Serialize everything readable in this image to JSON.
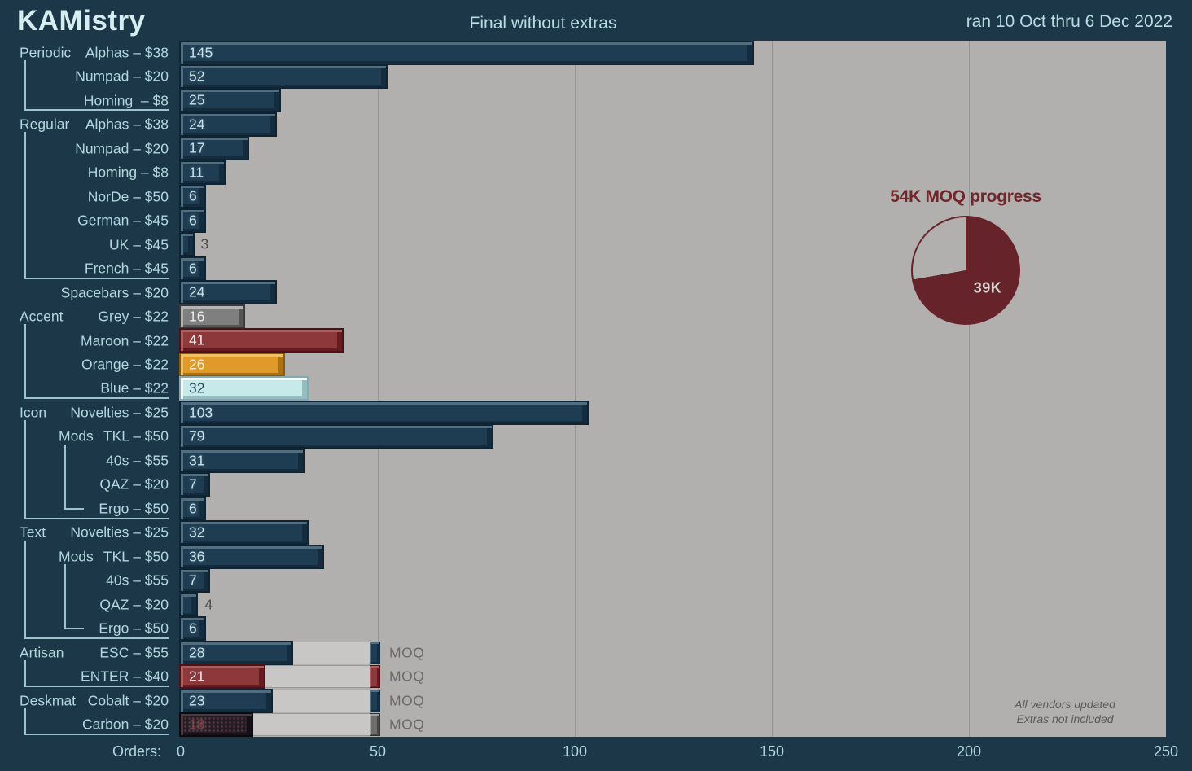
{
  "header": {
    "brand": "KAMistry",
    "title": "Final without extras",
    "date_range": "ran 10 Oct thru 6 Dec 2022"
  },
  "annotation": {
    "line1": "All vendors updated",
    "line2": "Extras not included"
  },
  "colors": {
    "background": "#1c3848",
    "plot_background": "#b2b0af",
    "moq_track": "#c9c7c5",
    "gridline": "#979593",
    "label_text": "#b2d6de",
    "bracket_line": "#9dc3cd",
    "outside_value_text": "#4c4c4c",
    "moq_text": "#6b6a69",
    "pie_fill": "#662329",
    "pie_title_text": "#73262a",
    "annotation_text": "#5c5b5a"
  },
  "bar_palette": {
    "navy": {
      "face": "#1e3c52",
      "light": "#516e80",
      "dark": "#142c3e",
      "outline": "#0f2433",
      "text": "#c9e2e8"
    },
    "grey": {
      "face": "#7f7f7f",
      "light": "#b4b4b4",
      "dark": "#555555",
      "outline": "#3a3a3a",
      "text": "#ececec"
    },
    "maroon": {
      "face": "#8d383b",
      "light": "#aa6061",
      "dark": "#641c21",
      "outline": "#4a1216",
      "text": "#f3e9e9"
    },
    "orange": {
      "face": "#e09a29",
      "light": "#efc068",
      "dark": "#ad7013",
      "outline": "#8a5a0c",
      "text": "#f8f0dc"
    },
    "lightblue": {
      "face": "#c6e9ea",
      "light": "#f0fbfb",
      "dark": "#97bcc0",
      "outline": "#84a9ae",
      "text": "#2b4859"
    },
    "carbon": {
      "face": "#241d24",
      "light": "#4a3a42",
      "dark": "#151015",
      "outline": "#0d090d",
      "text": "#8b3a40"
    },
    "slate": {
      "face": "#6e6e6e",
      "light": "#a0a0a0",
      "dark": "#474747",
      "outline": "#333333",
      "text": "#ececec"
    }
  },
  "chart_data": {
    "type": "bar",
    "orientation": "horizontal",
    "title": "Final without extras",
    "xlabel": "Orders",
    "xlabel_display": "Orders:",
    "xlim": [
      0,
      250
    ],
    "xticks": [
      0,
      50,
      100,
      150,
      200,
      250
    ],
    "grid": "vertical",
    "moq": {
      "value": 50,
      "label": "MOQ"
    },
    "rows": [
      {
        "group": "Periodic",
        "label": "Alphas – $38",
        "value": 145,
        "color": "navy"
      },
      {
        "label": "Numpad – $20",
        "value": 52,
        "color": "navy"
      },
      {
        "label": "Homing  – $8",
        "value": 25,
        "color": "navy"
      },
      {
        "group": "Regular",
        "label": "Alphas – $38",
        "value": 24,
        "color": "navy"
      },
      {
        "label": "Numpad – $20",
        "value": 17,
        "color": "navy"
      },
      {
        "label": "Homing – $8",
        "value": 11,
        "color": "navy"
      },
      {
        "label": "NorDe – $50",
        "value": 6,
        "color": "navy"
      },
      {
        "label": "German – $45",
        "value": 6,
        "color": "navy"
      },
      {
        "label": "UK – $45",
        "value": 3,
        "color": "navy",
        "value_outside": true
      },
      {
        "label": "French – $45",
        "value": 6,
        "color": "navy"
      },
      {
        "label": "Spacebars – $20",
        "value": 24,
        "color": "navy"
      },
      {
        "group": "Accent",
        "label": "Grey – $22",
        "value": 16,
        "color": "grey",
        "bright": true
      },
      {
        "label": "Maroon – $22",
        "value": 41,
        "color": "maroon",
        "bright": true
      },
      {
        "label": "Orange – $22",
        "value": 26,
        "color": "orange",
        "bright": true
      },
      {
        "label": "Blue – $22",
        "value": 32,
        "color": "lightblue",
        "bright": true
      },
      {
        "group": "Icon",
        "label": "Novelties – $25",
        "value": 103,
        "color": "navy"
      },
      {
        "subgroup": "Mods",
        "label": "TKL – $50",
        "value": 79,
        "color": "navy"
      },
      {
        "label": "40s – $55",
        "value": 31,
        "color": "navy"
      },
      {
        "label": "QAZ – $20",
        "value": 7,
        "color": "navy"
      },
      {
        "label": "Ergo – $50",
        "value": 6,
        "color": "navy"
      },
      {
        "group": "Text",
        "label": "Novelties – $25",
        "value": 32,
        "color": "navy"
      },
      {
        "subgroup": "Mods",
        "label": "TKL – $50",
        "value": 36,
        "color": "navy"
      },
      {
        "label": "40s – $55",
        "value": 7,
        "color": "navy"
      },
      {
        "label": "QAZ – $20",
        "value": 4,
        "color": "navy",
        "value_outside": true
      },
      {
        "label": "Ergo – $50",
        "value": 6,
        "color": "navy"
      },
      {
        "group": "Artisan",
        "label": "ESC – $55",
        "value": 28,
        "color": "navy",
        "moq": true
      },
      {
        "label": "ENTER – $40",
        "value": 21,
        "color": "maroon",
        "moq": true,
        "bright": true
      },
      {
        "group": "Deskmat",
        "label": "Cobalt – $20",
        "value": 23,
        "color": "navy",
        "moq": true
      },
      {
        "label": "Carbon – $20",
        "value": 18,
        "color": "carbon",
        "moq": true,
        "cap_color": "slate",
        "speckle": true
      }
    ],
    "groups": [
      {
        "name": "Periodic",
        "start": 0,
        "end": 2
      },
      {
        "name": "Regular",
        "start": 3,
        "end": 9
      },
      {
        "name": "Accent",
        "start": 11,
        "end": 14
      },
      {
        "name": "Icon",
        "start": 15,
        "end": 19,
        "sub": {
          "name": "Mods",
          "start": 16,
          "end": 19
        }
      },
      {
        "name": "Text",
        "start": 20,
        "end": 24,
        "sub": {
          "name": "Mods",
          "start": 21,
          "end": 24
        }
      },
      {
        "name": "Artisan",
        "start": 25,
        "end": 26
      },
      {
        "name": "Deskmat",
        "start": 27,
        "end": 28
      }
    ],
    "pie": {
      "title": "54K MOQ progress",
      "total_k": 54,
      "value_k": 39,
      "value_label": "39K"
    }
  }
}
